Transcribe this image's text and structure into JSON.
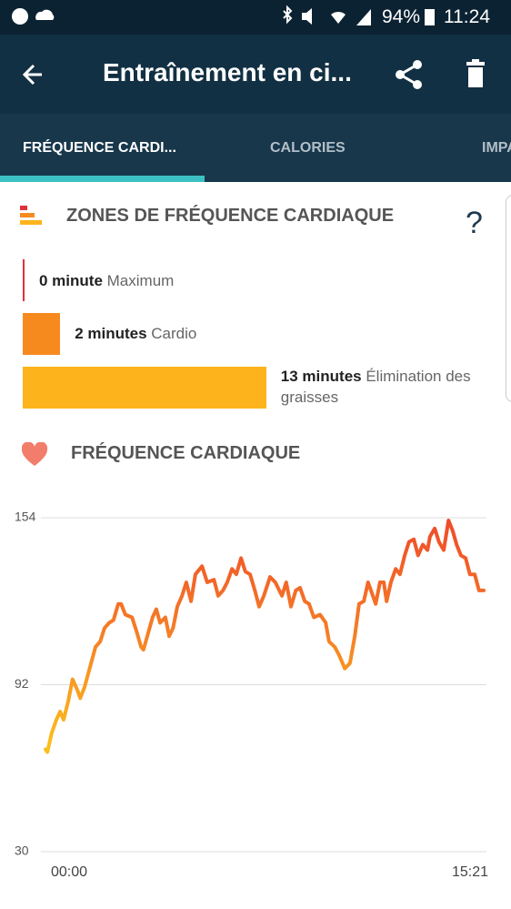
{
  "status_bar": {
    "battery": "94%",
    "time": "11:24"
  },
  "app_bar": {
    "title": "Entraînement en ci..."
  },
  "tabs": [
    "FRÉQUENCE CARDI...",
    "CALORIES",
    "IMPA"
  ],
  "zones": {
    "title": "ZONES DE FRÉQUENCE CARDIAQUE",
    "help": "?",
    "items": [
      {
        "value": 0,
        "label": "0 minute",
        "name": "Maximum",
        "color": "#e0303c"
      },
      {
        "value": 2,
        "label": "2 minutes",
        "name": "Cardio",
        "color": "#f78a1f"
      },
      {
        "value": 13,
        "label": "13 minutes",
        "name": "Élimination des graisses",
        "color": "#fdb41c"
      }
    ]
  },
  "chart_data": {
    "type": "line",
    "title": "FRÉQUENCE CARDIAQUE",
    "x": [
      0,
      4,
      13,
      23,
      31,
      38,
      48,
      57,
      67,
      73,
      82,
      96,
      105,
      115,
      124,
      134,
      143,
      153,
      159,
      168,
      182,
      191,
      201,
      206,
      214,
      225,
      233,
      241,
      252,
      260,
      268,
      277,
      287,
      296,
      306,
      315,
      329,
      340,
      354,
      363,
      373,
      382,
      392,
      401,
      411,
      420,
      430,
      440,
      449,
      459,
      472,
      483,
      497,
      506,
      516,
      526,
      535,
      545,
      554,
      564,
      577,
      589,
      596,
      608,
      617,
      629,
      640,
      650,
      659,
      669,
      678,
      688,
      694,
      703,
      711,
      717,
      726,
      736,
      745,
      755,
      764,
      774,
      783,
      793,
      803,
      808,
      818,
      827,
      837,
      847,
      856,
      864,
      873,
      883,
      892,
      902,
      911,
      921
    ],
    "values": [
      68,
      67,
      74,
      79,
      82,
      79,
      86,
      94,
      90,
      87,
      91,
      100,
      106,
      108,
      113,
      115,
      116,
      122,
      122,
      118,
      117,
      112,
      106,
      105,
      110,
      117,
      120,
      115,
      117,
      110,
      113,
      121,
      125,
      130,
      123,
      133,
      136,
      130,
      131,
      125,
      127,
      130,
      135,
      133,
      139,
      134,
      133,
      127,
      121,
      125,
      132,
      130,
      125,
      130,
      121,
      127,
      128,
      123,
      122,
      117,
      118,
      115,
      108,
      106,
      103,
      98,
      100,
      110,
      122,
      123,
      130,
      125,
      122,
      130,
      130,
      123,
      130,
      135,
      133,
      140,
      145,
      146,
      140,
      144,
      142,
      147,
      150,
      145,
      142,
      153,
      149,
      144,
      140,
      139,
      133,
      133,
      127,
      127
    ],
    "xlim": [
      0,
      921
    ],
    "xticks": [
      {
        "value": 0,
        "label": "00:00"
      },
      {
        "value": 921,
        "label": "15:21"
      }
    ],
    "ylim": [
      30,
      154
    ],
    "yticks": [
      30,
      92,
      154
    ],
    "grid": true,
    "gradient": [
      "#fbbd1c",
      "#f57d26",
      "#ef4a2a"
    ]
  }
}
